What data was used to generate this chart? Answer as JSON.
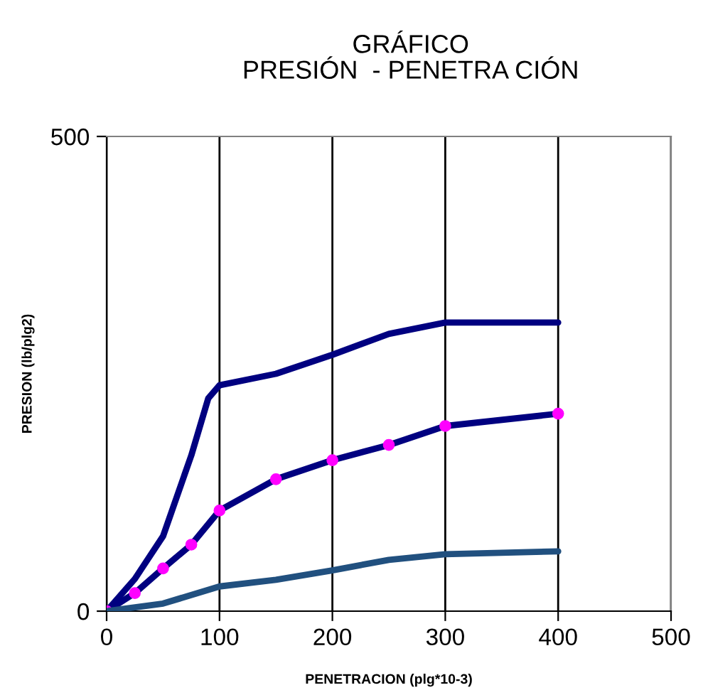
{
  "chart_data": {
    "type": "line",
    "title": "GRÁFICO\nPRESIÓN  - PENETRA CIÓN",
    "xlabel": "PENETRACION (plg*10-3)",
    "ylabel": "PRESION (lb/plg2)",
    "xlim": [
      0,
      500
    ],
    "xticks": [
      0,
      100,
      200,
      300,
      400,
      500
    ],
    "ylim": [
      0,
      500
    ],
    "yticks": [
      0,
      500
    ],
    "grid": "x",
    "legend": false,
    "series": [
      {
        "color": "#000080",
        "x": [
          0,
          25,
          50,
          75,
          90,
          100,
          150,
          200,
          250,
          300,
          400
        ],
        "values": [
          0,
          34,
          79,
          164,
          224,
          238,
          250,
          270,
          292,
          304,
          304
        ]
      },
      {
        "color": "#000080",
        "marker": "circle",
        "x": [
          0,
          25,
          50,
          75,
          100,
          150,
          200,
          250,
          300,
          400
        ],
        "values": [
          0,
          19,
          45,
          70,
          106,
          139,
          159,
          175,
          195,
          208
        ]
      },
      {
        "color": "#21507f",
        "x": [
          0,
          50,
          100,
          150,
          200,
          250,
          300,
          400
        ],
        "values": [
          0,
          8,
          26,
          33,
          43,
          54,
          60,
          63
        ]
      }
    ]
  }
}
